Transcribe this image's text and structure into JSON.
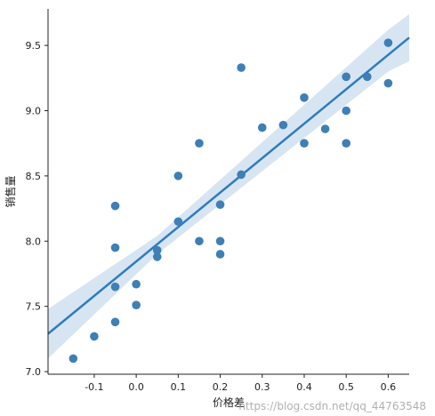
{
  "chart_data": {
    "type": "scatter",
    "title": "",
    "xlabel": "价格差",
    "ylabel": "销售量",
    "xlim": [
      -0.21,
      0.65
    ],
    "ylim": [
      6.98,
      9.78
    ],
    "xticks": [
      -0.1,
      0.0,
      0.1,
      0.2,
      0.3,
      0.4,
      0.5,
      0.6
    ],
    "xtick_labels": [
      "-0.1",
      "0.0",
      "0.1",
      "0.2",
      "0.3",
      "0.4",
      "0.5",
      "0.6"
    ],
    "yticks": [
      7.0,
      7.5,
      8.0,
      8.5,
      9.0,
      9.5
    ],
    "ytick_labels": [
      "7.0",
      "7.5",
      "8.0",
      "8.5",
      "9.0",
      "9.5"
    ],
    "grid": false,
    "points": [
      {
        "x": -0.15,
        "y": 7.1
      },
      {
        "x": -0.1,
        "y": 7.27
      },
      {
        "x": -0.05,
        "y": 7.38
      },
      {
        "x": -0.05,
        "y": 7.65
      },
      {
        "x": -0.05,
        "y": 7.95
      },
      {
        "x": -0.05,
        "y": 8.27
      },
      {
        "x": 0.0,
        "y": 7.51
      },
      {
        "x": 0.0,
        "y": 7.67
      },
      {
        "x": 0.05,
        "y": 7.88
      },
      {
        "x": 0.05,
        "y": 7.93
      },
      {
        "x": 0.1,
        "y": 8.15
      },
      {
        "x": 0.1,
        "y": 8.5
      },
      {
        "x": 0.15,
        "y": 8.0
      },
      {
        "x": 0.15,
        "y": 8.75
      },
      {
        "x": 0.2,
        "y": 7.9
      },
      {
        "x": 0.2,
        "y": 8.0
      },
      {
        "x": 0.2,
        "y": 8.28
      },
      {
        "x": 0.25,
        "y": 8.51
      },
      {
        "x": 0.25,
        "y": 9.33
      },
      {
        "x": 0.3,
        "y": 8.87
      },
      {
        "x": 0.35,
        "y": 8.89
      },
      {
        "x": 0.4,
        "y": 8.75
      },
      {
        "x": 0.4,
        "y": 9.1
      },
      {
        "x": 0.45,
        "y": 8.86
      },
      {
        "x": 0.5,
        "y": 8.75
      },
      {
        "x": 0.5,
        "y": 9.0
      },
      {
        "x": 0.5,
        "y": 9.26
      },
      {
        "x": 0.55,
        "y": 9.26
      },
      {
        "x": 0.6,
        "y": 9.21
      },
      {
        "x": 0.6,
        "y": 9.52
      }
    ],
    "regression": {
      "x_start": -0.21,
      "y_start": 7.29,
      "x_end": 0.65,
      "y_end": 9.56
    },
    "confidence_band": {
      "x": [
        -0.21,
        0.05,
        0.6,
        0.65
      ],
      "lower": [
        7.1,
        7.9,
        9.3,
        9.38
      ],
      "upper": [
        7.48,
        8.04,
        9.62,
        9.74
      ]
    },
    "colors": {
      "points": "#3e7fb5",
      "line": "#2f7bbf",
      "band": "#bcd4eb",
      "axis": "#222222"
    }
  },
  "watermark": "https://blog.csdn.net/qq_44763548"
}
